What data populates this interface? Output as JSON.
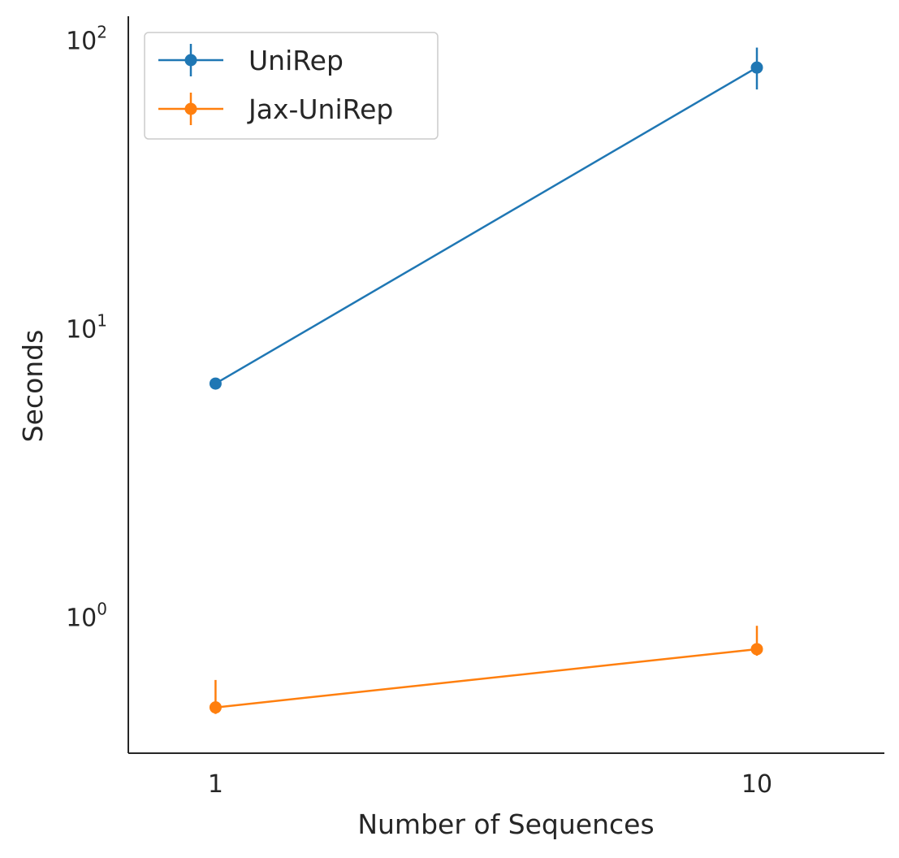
{
  "chart_data": {
    "type": "line",
    "xlabel": "Number of Sequences",
    "ylabel": "Seconds",
    "x_scale": "log",
    "y_scale": "log",
    "xlim": [
      0.69,
      17.2
    ],
    "ylim": [
      0.34,
      122
    ],
    "x_ticks": [
      {
        "value": 1,
        "label": "1"
      },
      {
        "value": 10,
        "label": "10"
      }
    ],
    "y_ticks": [
      {
        "value": 1,
        "base": "10",
        "exp": "0"
      },
      {
        "value": 10,
        "base": "10",
        "exp": "1"
      },
      {
        "value": 100,
        "base": "10",
        "exp": "2"
      }
    ],
    "legend_position": "top-left",
    "grid": false,
    "series": [
      {
        "name": "UniRep",
        "color": "#1f77b4",
        "x": [
          1,
          10
        ],
        "y": [
          6.5,
          81
        ],
        "err_low": [
          6.3,
          68
        ],
        "err_high": [
          6.7,
          95
        ]
      },
      {
        "name": "Jax-UniRep",
        "color": "#ff7f0e",
        "x": [
          1,
          10
        ],
        "y": [
          0.49,
          0.78
        ],
        "err_low": [
          0.465,
          0.74
        ],
        "err_high": [
          0.61,
          0.94
        ]
      }
    ]
  }
}
